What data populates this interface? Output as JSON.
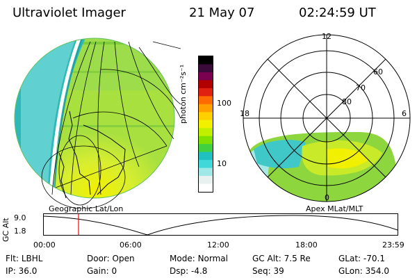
{
  "header": {
    "instrument": "Ultraviolet Imager",
    "date": "21 May 07",
    "time": "02:24:59 UT"
  },
  "colorbar": {
    "unit_label": "photon cm⁻²s⁻¹",
    "ticks": [
      "100",
      "10"
    ],
    "colors": [
      "#000000",
      "#3a0a3a",
      "#7a0050",
      "#b00000",
      "#e02010",
      "#ff6a00",
      "#ffa000",
      "#ffd000",
      "#f0f000",
      "#c0f000",
      "#80e000",
      "#40d040",
      "#20c0c0",
      "#40d8d8",
      "#a0e8e8",
      "#e8f0f0",
      "#ffffff"
    ]
  },
  "left_panel": {
    "caption": "Geographic Lat/Lon"
  },
  "right_panel": {
    "caption": "Apex MLat/MLT",
    "mlt_labels": [
      "12",
      "18",
      "6",
      "0"
    ],
    "lat_labels": [
      "60",
      "70",
      "80"
    ]
  },
  "altitude_plot": {
    "ylabel": "GC Alt",
    "yticks": [
      "9.0",
      "1.8"
    ],
    "xticks": [
      "00:00",
      "06:00",
      "12:00",
      "18:00",
      "23:59"
    ],
    "marker_time": "02:24:59"
  },
  "status": {
    "row1": [
      {
        "label": "Flt:",
        "value": "LBHL"
      },
      {
        "label": "Door:",
        "value": "Open"
      },
      {
        "label": "Mode:",
        "value": "Normal"
      },
      {
        "label": "GC Alt:",
        "value": "7.5 Re"
      },
      {
        "label": "GLat:",
        "value": "-70.1"
      }
    ],
    "row2": [
      {
        "label": "IP:",
        "value": "36.0"
      },
      {
        "label": "Gain:",
        "value": "0"
      },
      {
        "label": "Dsp:",
        "value": "-4.8"
      },
      {
        "label": "Seq:",
        "value": "39"
      },
      {
        "label": "GLon:",
        "value": "354.0"
      }
    ]
  }
}
